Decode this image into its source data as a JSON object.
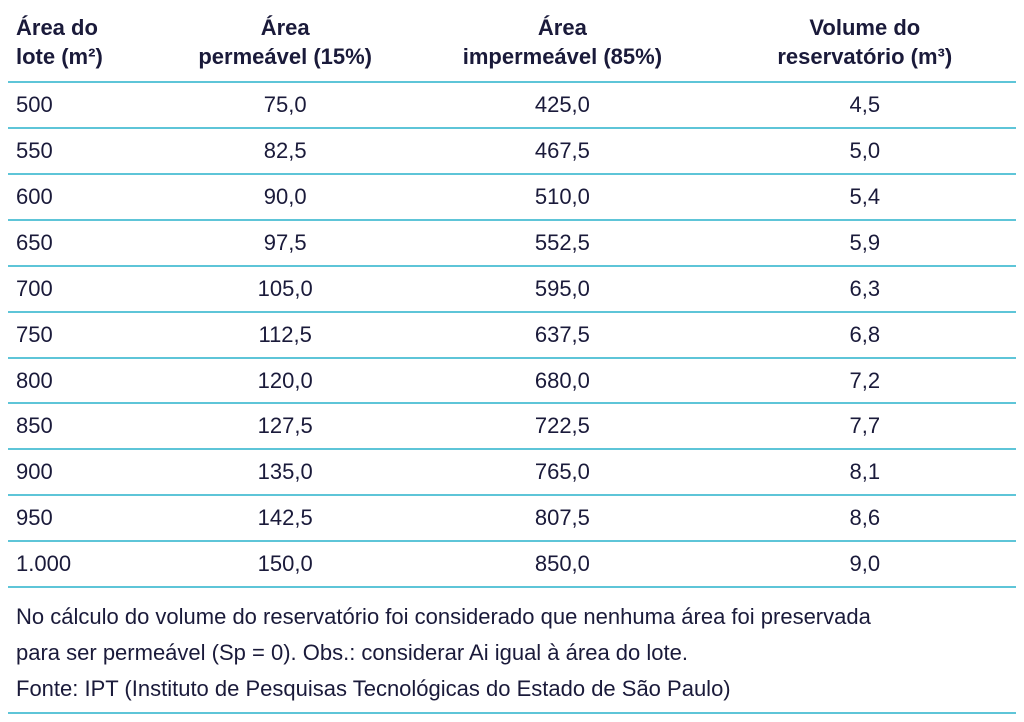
{
  "table": {
    "type": "table",
    "background_color": "#ffffff",
    "text_color": "#1a1a3a",
    "border_color": "#5ec5d8",
    "border_width": 2,
    "header_fontsize": 22,
    "header_fontweight": "bold",
    "cell_fontsize": 22,
    "columns": [
      {
        "label_line1": "Área do",
        "label_line2": "lote (m²)",
        "align": "left",
        "width_pct": 15
      },
      {
        "label_line1": "Área",
        "label_line2": "permeável (15%)",
        "align": "center",
        "width_pct": 25
      },
      {
        "label_line1": "Área",
        "label_line2": "impermeável (85%)",
        "align": "center",
        "width_pct": 30
      },
      {
        "label_line1": "Volume do",
        "label_line2": "reservatório (m³)",
        "align": "center",
        "width_pct": 30
      }
    ],
    "rows": [
      [
        "500",
        "75,0",
        "425,0",
        "4,5"
      ],
      [
        "550",
        "82,5",
        "467,5",
        "5,0"
      ],
      [
        "600",
        "90,0",
        "510,0",
        "5,4"
      ],
      [
        "650",
        "97,5",
        "552,5",
        "5,9"
      ],
      [
        "700",
        "105,0",
        "595,0",
        "6,3"
      ],
      [
        "750",
        "112,5",
        "637,5",
        "6,8"
      ],
      [
        "800",
        "120,0",
        "680,0",
        "7,2"
      ],
      [
        "850",
        "127,5",
        "722,5",
        "7,7"
      ],
      [
        "900",
        "135,0",
        "765,0",
        "8,1"
      ],
      [
        "950",
        "142,5",
        "807,5",
        "8,6"
      ],
      [
        "1.000",
        "150,0",
        "850,0",
        "9,0"
      ]
    ]
  },
  "footer": {
    "line1": "No cálculo do volume do reservatório foi considerado que nenhuma área foi preservada",
    "line2": "para ser permeável (Sp = 0). Obs.: considerar Ai igual à área do lote.",
    "line3": "Fonte: IPT (Instituto de Pesquisas Tecnológicas do Estado de São Paulo)",
    "fontsize": 22
  }
}
